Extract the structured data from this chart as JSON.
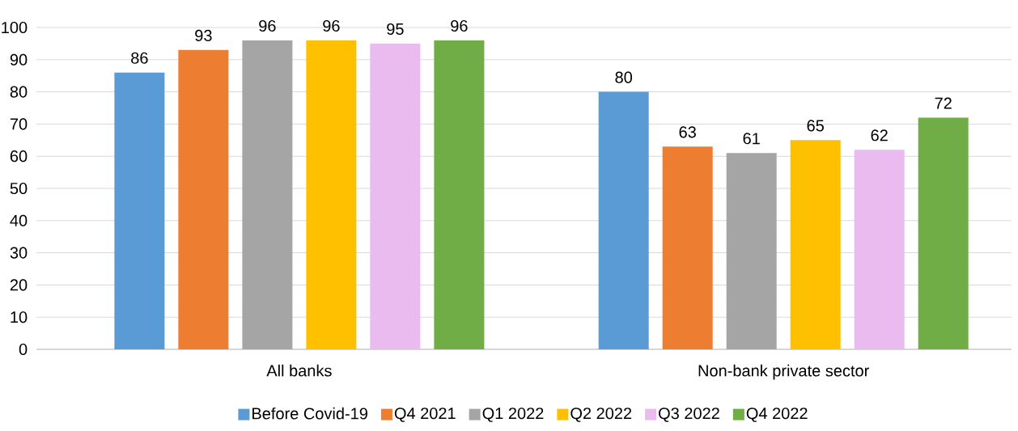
{
  "chart_data": {
    "type": "bar",
    "categories": [
      "All banks",
      "Non-bank private sector"
    ],
    "series": [
      {
        "name": "Before Covid-19",
        "color": "#5b9bd5",
        "values": [
          86,
          80
        ]
      },
      {
        "name": "Q4 2021",
        "color": "#ed7d31",
        "values": [
          93,
          63
        ]
      },
      {
        "name": "Q1 2022",
        "color": "#a5a5a5",
        "values": [
          96,
          61
        ]
      },
      {
        "name": "Q2 2022",
        "color": "#ffc000",
        "values": [
          96,
          65
        ]
      },
      {
        "name": "Q3 2022",
        "color": "#e9bbee",
        "values": [
          95,
          62
        ]
      },
      {
        "name": "Q4 2022",
        "color": "#70ad47",
        "values": [
          96,
          72
        ]
      }
    ],
    "ylim": [
      0,
      100
    ],
    "yticks": [
      0,
      10,
      20,
      30,
      40,
      50,
      60,
      70,
      80,
      90,
      100
    ],
    "grid": "y",
    "legend": "bottom",
    "data_labels": true
  }
}
